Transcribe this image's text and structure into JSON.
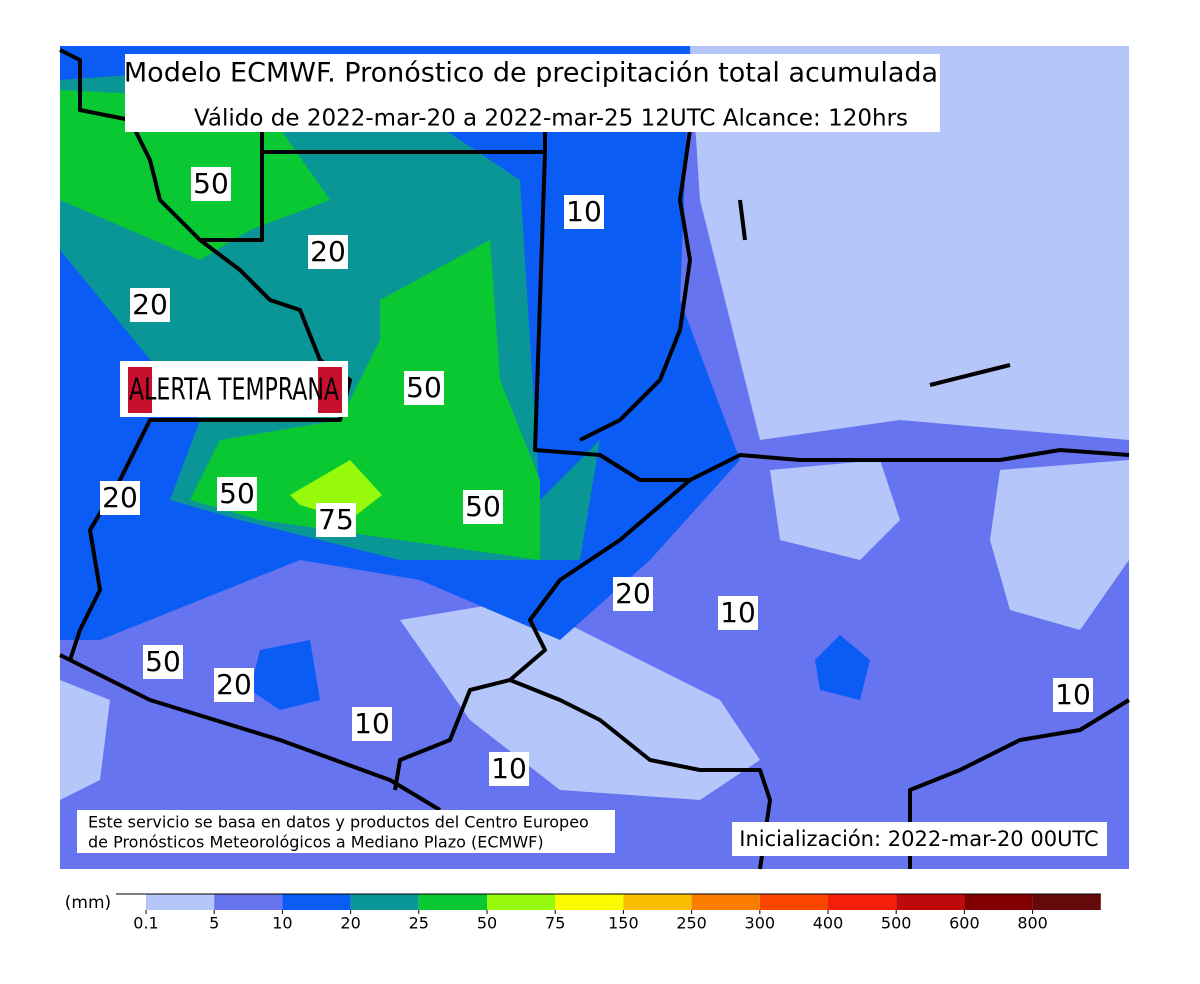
{
  "header": {
    "title": "Modelo ECMWF. Pronóstico de precipitación total acumulada",
    "subtitle": "Válido de 2022-mar-20 a 2022-mar-25 12UTC   Alcance: 120hrs"
  },
  "logo": "ALERTA TEMPRANA",
  "contour_labels": [
    "50",
    "20",
    "10",
    "20",
    "50",
    "20",
    "50",
    "75",
    "50",
    "20",
    "10",
    "50",
    "20",
    "10",
    "10",
    "10"
  ],
  "footer": {
    "source": [
      "Este servicio se basa en datos y productos del Centro Europeo",
      "de Pronósticos Meteorológicos a Mediano Plazo (ECMWF)"
    ],
    "init": "Inicialización: 2022-mar-20 00UTC"
  },
  "colorbar": {
    "unit": "(mm)",
    "colors": [
      "#ffffff",
      "#b4c6fa",
      "#6674f0",
      "#0a5cf5",
      "#0a9696",
      "#0ac832",
      "#96fa0a",
      "#fafa00",
      "#fabe00",
      "#fa7d00",
      "#fa4600",
      "#f51e0a",
      "#be0a0a",
      "#820000",
      "#640a0a"
    ],
    "ticks": [
      0.1,
      5,
      10,
      20,
      25,
      50,
      75,
      150,
      250,
      300,
      400,
      500,
      600,
      800
    ]
  }
}
